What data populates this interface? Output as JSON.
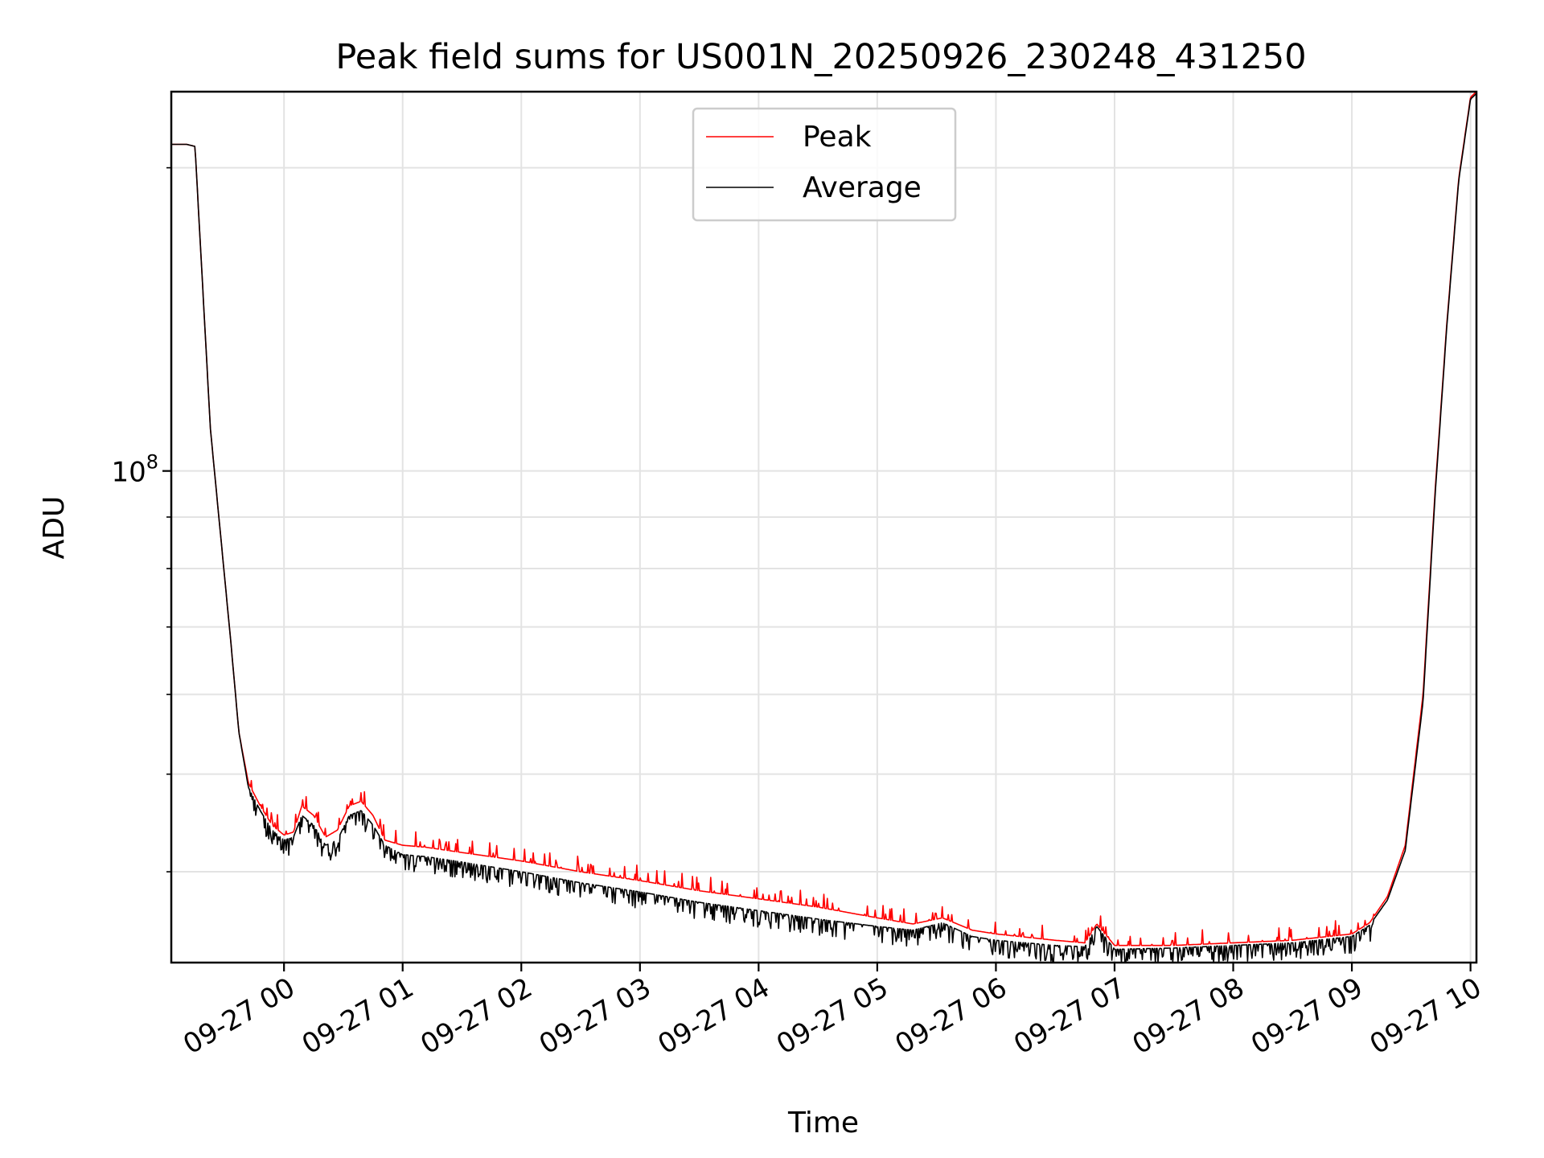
{
  "chart_data": {
    "type": "line",
    "title": "Peak field sums for US001N_20250926_230248_431250",
    "xlabel": "Time",
    "ylabel": "ADU",
    "yscale": "log",
    "grid": true,
    "legend_position": "upper-center",
    "xlim_hours": [
      -0.95,
      10.05
    ],
    "ylim": [
      32500000,
      238000000
    ],
    "x_unit": "hours relative to 09-27 00:00",
    "x_ticks": [
      {
        "value": 0,
        "label": "09-27 00"
      },
      {
        "value": 1,
        "label": "09-27 01"
      },
      {
        "value": 2,
        "label": "09-27 02"
      },
      {
        "value": 3,
        "label": "09-27 03"
      },
      {
        "value": 4,
        "label": "09-27 04"
      },
      {
        "value": 5,
        "label": "09-27 05"
      },
      {
        "value": 6,
        "label": "09-27 06"
      },
      {
        "value": 7,
        "label": "09-27 07"
      },
      {
        "value": 8,
        "label": "09-27 08"
      },
      {
        "value": 9,
        "label": "09-27 09"
      },
      {
        "value": 10,
        "label": "09-27 10"
      }
    ],
    "y_major_ticks": [
      {
        "value": 100000000,
        "base": "10",
        "exp": "8"
      }
    ],
    "y_minor_ticks": [
      40000000,
      50000000,
      60000000,
      70000000,
      80000000,
      90000000,
      200000000
    ],
    "series": [
      {
        "name": "Peak",
        "color": "#ff0000",
        "x": [
          -0.95,
          -0.82,
          -0.75,
          -0.62,
          -0.45,
          -0.38,
          -0.3,
          -0.2,
          -0.1,
          0.0,
          0.08,
          0.15,
          0.25,
          0.35,
          0.45,
          0.55,
          0.65,
          0.75,
          0.85,
          1.0,
          1.2,
          1.5,
          2.0,
          2.5,
          3.0,
          3.5,
          4.0,
          4.5,
          5.0,
          5.3,
          5.55,
          5.8,
          6.0,
          6.5,
          6.75,
          6.85,
          7.0,
          7.5,
          8.0,
          8.5,
          9.0,
          9.15,
          9.3,
          9.45,
          9.6,
          9.7,
          9.8,
          9.9,
          10.0,
          10.05
        ],
        "y": [
          211000000,
          211000000,
          210000000,
          110000000,
          68000000,
          55000000,
          49000000,
          46500000,
          44500000,
          43500000,
          43800000,
          46500000,
          45500000,
          43300000,
          44000000,
          46500000,
          47000000,
          45500000,
          43000000,
          42500000,
          42300000,
          41800000,
          41000000,
          40000000,
          39200000,
          38300000,
          37600000,
          36900000,
          36000000,
          35500000,
          36000000,
          35000000,
          34700000,
          34200000,
          34000000,
          35500000,
          33800000,
          33800000,
          34000000,
          34200000,
          34700000,
          35600000,
          37800000,
          42500000,
          60000000,
          95000000,
          140000000,
          195000000,
          235000000,
          238000000
        ]
      },
      {
        "name": "Average",
        "color": "#000000",
        "x": [
          -0.95,
          -0.82,
          -0.75,
          -0.62,
          -0.45,
          -0.38,
          -0.3,
          -0.2,
          -0.1,
          0.0,
          0.08,
          0.15,
          0.25,
          0.35,
          0.45,
          0.55,
          0.65,
          0.75,
          0.85,
          1.0,
          1.2,
          1.5,
          2.0,
          2.5,
          3.0,
          3.5,
          4.0,
          4.5,
          5.0,
          5.3,
          5.55,
          5.8,
          6.0,
          6.5,
          6.75,
          6.85,
          7.0,
          7.5,
          8.0,
          8.5,
          9.0,
          9.15,
          9.3,
          9.45,
          9.6,
          9.7,
          9.8,
          9.9,
          10.0,
          10.05
        ],
        "y": [
          211000000,
          211000000,
          210000000,
          110000000,
          68000000,
          55000000,
          48500000,
          46000000,
          44000000,
          43000000,
          43300000,
          45500000,
          44500000,
          42500000,
          43000000,
          45500000,
          46000000,
          44500000,
          42500000,
          41600000,
          41400000,
          40900000,
          40000000,
          39000000,
          38200000,
          37300000,
          36600000,
          35900000,
          35300000,
          35000000,
          35600000,
          34500000,
          34200000,
          33800000,
          33700000,
          35300000,
          33500000,
          33600000,
          33800000,
          34000000,
          34500000,
          35400000,
          37500000,
          42000000,
          59000000,
          94000000,
          139000000,
          194000000,
          234000000,
          237000000
        ]
      }
    ],
    "legend": [
      {
        "name": "Peak",
        "color": "#ff0000"
      },
      {
        "name": "Average",
        "color": "#000000"
      }
    ]
  }
}
